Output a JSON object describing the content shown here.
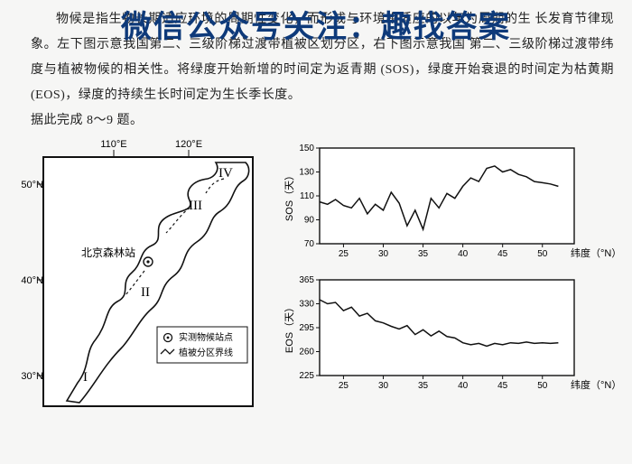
{
  "overlay_title": "微信公众号关注：趣找答案",
  "paragraph": {
    "l1": "物候是指生物长期适应环境的周期性变化，而形成与环境相适应的以年为周期的生",
    "l2": "长发育节律现象。左下图示意我国第二、三级阶梯过渡带植被区划分区，右下图示意我国",
    "l3": "第二、三级阶梯过渡带纬度与植被物候的相关性。将绿度开始新增的时间定为返青期",
    "l4": "(SOS)，绿度开始衰退的时间定为枯黄期(EOS)，绿度的持续生长时间定为生长季长度。",
    "l5": "据此完成 8～9 题。"
  },
  "map": {
    "border_color": "#111",
    "bg": "#ffffff",
    "xlabels": [
      "110°E",
      "120°E"
    ],
    "ylabels": [
      "50°N",
      "40°N",
      "30°N"
    ],
    "regions": [
      "I",
      "II",
      "III",
      "IV"
    ],
    "station": "北京森林站",
    "legend": [
      "实测物候站点",
      "植被分区界线"
    ]
  },
  "sos_chart": {
    "type": "line",
    "title": "",
    "ylabel": "SOS（天）",
    "xlabel": "纬度（°N）",
    "xlim": [
      22,
      54
    ],
    "ylim": [
      70,
      150
    ],
    "yticks": [
      70,
      90,
      110,
      130,
      150
    ],
    "xticks": [
      25,
      30,
      35,
      40,
      45,
      50
    ],
    "line_color": "#111",
    "line_width": 1.5,
    "bg": "#ffffff",
    "axis_color": "#111",
    "label_fontsize": 11,
    "tick_fontsize": 10,
    "points": [
      [
        22,
        105
      ],
      [
        23,
        103
      ],
      [
        24,
        107
      ],
      [
        25,
        102
      ],
      [
        26,
        100
      ],
      [
        27,
        108
      ],
      [
        28,
        95
      ],
      [
        29,
        103
      ],
      [
        30,
        98
      ],
      [
        31,
        113
      ],
      [
        32,
        104
      ],
      [
        33,
        85
      ],
      [
        34,
        98
      ],
      [
        35,
        82
      ],
      [
        36,
        108
      ],
      [
        37,
        100
      ],
      [
        38,
        112
      ],
      [
        39,
        108
      ],
      [
        40,
        118
      ],
      [
        41,
        125
      ],
      [
        42,
        122
      ],
      [
        43,
        133
      ],
      [
        44,
        135
      ],
      [
        45,
        130
      ],
      [
        46,
        132
      ],
      [
        47,
        128
      ],
      [
        48,
        126
      ],
      [
        49,
        122
      ],
      [
        50,
        121
      ],
      [
        51,
        120
      ],
      [
        52,
        118
      ]
    ]
  },
  "eos_chart": {
    "type": "line",
    "title": "",
    "ylabel": "EOS（天）",
    "xlabel": "纬度（°N）",
    "xlim": [
      22,
      54
    ],
    "ylim": [
      225,
      365
    ],
    "yticks": [
      225,
      260,
      295,
      330,
      365
    ],
    "xticks": [
      25,
      30,
      35,
      40,
      45,
      50
    ],
    "line_color": "#111",
    "line_width": 1.5,
    "bg": "#ffffff",
    "axis_color": "#111",
    "label_fontsize": 11,
    "tick_fontsize": 10,
    "points": [
      [
        22,
        336
      ],
      [
        23,
        330
      ],
      [
        24,
        332
      ],
      [
        25,
        320
      ],
      [
        26,
        325
      ],
      [
        27,
        312
      ],
      [
        28,
        316
      ],
      [
        29,
        305
      ],
      [
        30,
        302
      ],
      [
        31,
        297
      ],
      [
        32,
        293
      ],
      [
        33,
        298
      ],
      [
        34,
        285
      ],
      [
        35,
        292
      ],
      [
        36,
        283
      ],
      [
        37,
        290
      ],
      [
        38,
        282
      ],
      [
        39,
        280
      ],
      [
        40,
        273
      ],
      [
        41,
        270
      ],
      [
        42,
        272
      ],
      [
        43,
        268
      ],
      [
        44,
        272
      ],
      [
        45,
        270
      ],
      [
        46,
        273
      ],
      [
        47,
        272
      ],
      [
        48,
        274
      ],
      [
        49,
        272
      ],
      [
        50,
        273
      ],
      [
        51,
        272
      ],
      [
        52,
        273
      ]
    ]
  }
}
